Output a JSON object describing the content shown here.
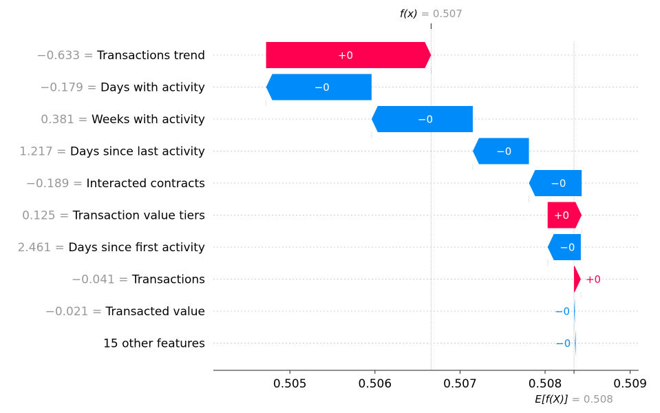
{
  "chart_data": {
    "type": "waterfall",
    "title": "",
    "xlabel": "",
    "ylabel": "",
    "xlim": [
      0.5041,
      0.5091
    ],
    "x_ticks": [
      "0.505",
      "0.506",
      "0.507",
      "0.508",
      "0.509"
    ],
    "tick_values": [
      0.505,
      0.506,
      0.507,
      0.508,
      0.509
    ],
    "fx": {
      "label": "f(x)",
      "value_text": "= 0.507",
      "value": 0.50666
    },
    "efx": {
      "label": "E[f(X)]",
      "value_text": "= 0.508",
      "value": 0.50834
    },
    "colors": {
      "positive": "#ff0051",
      "negative": "#008bfb",
      "value_text": "#999999"
    },
    "features": [
      {
        "value": "−0.633 =",
        "name": "Transactions trend",
        "start": 0.50472,
        "end": 0.50666,
        "label": "+0",
        "sign": "pos"
      },
      {
        "value": "−0.179 =",
        "name": "Days with activity",
        "start": 0.50596,
        "end": 0.50472,
        "label": "−0",
        "sign": "neg"
      },
      {
        "value": "0.381 =",
        "name": "Weeks with activity",
        "start": 0.50715,
        "end": 0.50596,
        "label": "−0",
        "sign": "neg"
      },
      {
        "value": "1.217 =",
        "name": "Days since last activity",
        "start": 0.50781,
        "end": 0.50715,
        "label": "−0",
        "sign": "neg"
      },
      {
        "value": "−0.189 =",
        "name": "Interacted contracts",
        "start": 0.50843,
        "end": 0.50781,
        "label": "−0",
        "sign": "neg"
      },
      {
        "value": "0.125 =",
        "name": "Transaction value tiers",
        "start": 0.50803,
        "end": 0.50843,
        "label": "+0",
        "sign": "pos"
      },
      {
        "value": "2.461 =",
        "name": "Days since first activity",
        "start": 0.50842,
        "end": 0.50803,
        "label": "−0",
        "sign": "neg"
      },
      {
        "value": "−0.041 =",
        "name": "Transactions",
        "start": 0.50834,
        "end": 0.50842,
        "label": "+0",
        "sign": "pos"
      },
      {
        "value": "−0.021 =",
        "name": "Transacted value",
        "start": 0.50835,
        "end": 0.50834,
        "label": "−0",
        "sign": "neg"
      },
      {
        "value": "",
        "name": "15 other features",
        "start": 0.50836,
        "end": 0.50835,
        "label": "−0",
        "sign": "neg"
      }
    ]
  }
}
